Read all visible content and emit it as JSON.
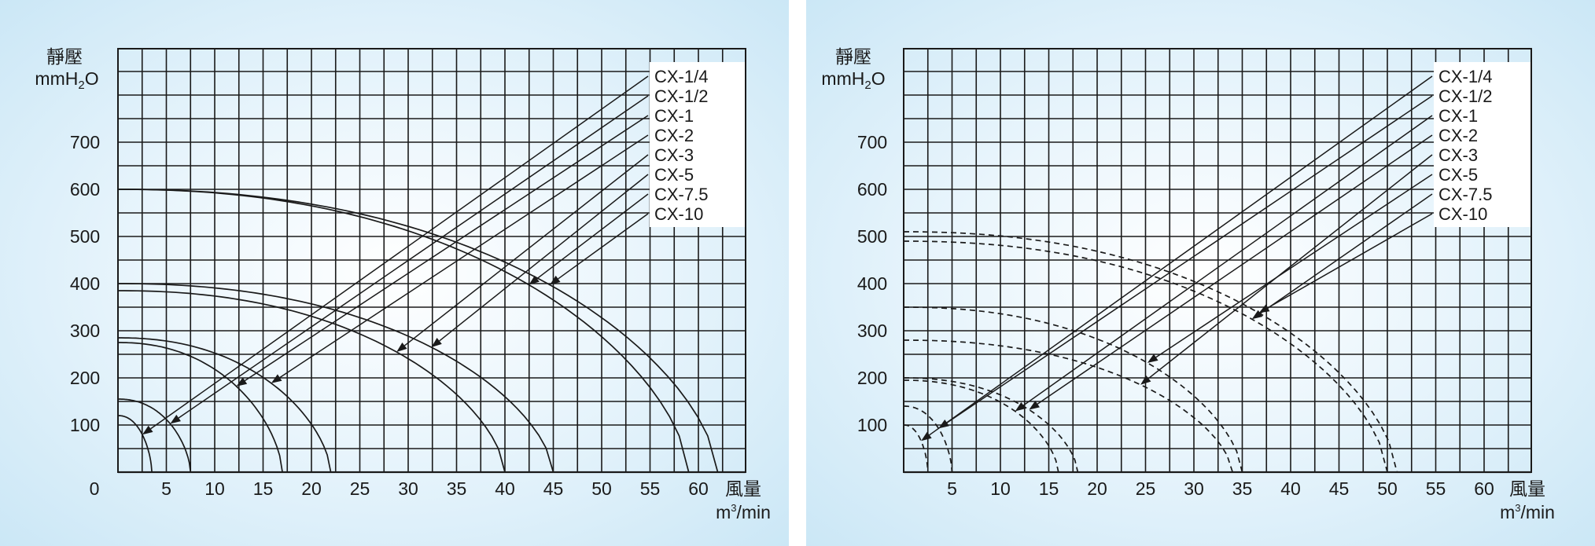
{
  "chart_data": [
    {
      "type": "line",
      "style": "solid",
      "ylabel": "靜壓",
      "yunit": "mmH2O",
      "xlabel": "風量",
      "xunit": "m³/min",
      "x_ticks": [
        "0",
        "5",
        "10",
        "15",
        "20",
        "25",
        "30",
        "35",
        "40",
        "45",
        "50",
        "55",
        "60"
      ],
      "y_ticks": [
        "100",
        "200",
        "300",
        "400",
        "500",
        "600",
        "700"
      ],
      "xlim": [
        0,
        65
      ],
      "ylim": [
        0,
        900
      ],
      "grid": true,
      "legend_position": "top-right",
      "series": [
        {
          "name": "CX-1/4",
          "shutoff_pressure": 120,
          "max_flow": 3.5
        },
        {
          "name": "CX-1/2",
          "shutoff_pressure": 155,
          "max_flow": 7.5
        },
        {
          "name": "CX-1",
          "shutoff_pressure": 275,
          "max_flow": 17
        },
        {
          "name": "CX-2",
          "shutoff_pressure": 285,
          "max_flow": 22
        },
        {
          "name": "CX-3",
          "shutoff_pressure": 385,
          "max_flow": 40
        },
        {
          "name": "CX-5",
          "shutoff_pressure": 400,
          "max_flow": 45
        },
        {
          "name": "CX-7.5",
          "shutoff_pressure": 600,
          "max_flow": 59
        },
        {
          "name": "CX-10",
          "shutoff_pressure": 600,
          "max_flow": 62
        }
      ]
    },
    {
      "type": "line",
      "style": "dashed",
      "ylabel": "靜壓",
      "yunit": "mmH2O",
      "xlabel": "風量",
      "xunit": "m³/min",
      "x_ticks": [
        "5",
        "10",
        "15",
        "20",
        "25",
        "30",
        "35",
        "40",
        "45",
        "50",
        "55",
        "60"
      ],
      "y_ticks": [
        "100",
        "200",
        "300",
        "400",
        "500",
        "600",
        "700"
      ],
      "xlim": [
        0,
        65
      ],
      "ylim": [
        0,
        900
      ],
      "grid": true,
      "legend_position": "top-right",
      "series": [
        {
          "name": "CX-1/4",
          "shutoff_pressure": 100,
          "max_flow": 2.5
        },
        {
          "name": "CX-1/2",
          "shutoff_pressure": 140,
          "max_flow": 5
        },
        {
          "name": "CX-1",
          "shutoff_pressure": 195,
          "max_flow": 16
        },
        {
          "name": "CX-2",
          "shutoff_pressure": 200,
          "max_flow": 18
        },
        {
          "name": "CX-3",
          "shutoff_pressure": 280,
          "max_flow": 34
        },
        {
          "name": "CX-5",
          "shutoff_pressure": 350,
          "max_flow": 35
        },
        {
          "name": "CX-7.5",
          "shutoff_pressure": 490,
          "max_flow": 50
        },
        {
          "name": "CX-10",
          "shutoff_pressure": 510,
          "max_flow": 51
        }
      ]
    }
  ]
}
